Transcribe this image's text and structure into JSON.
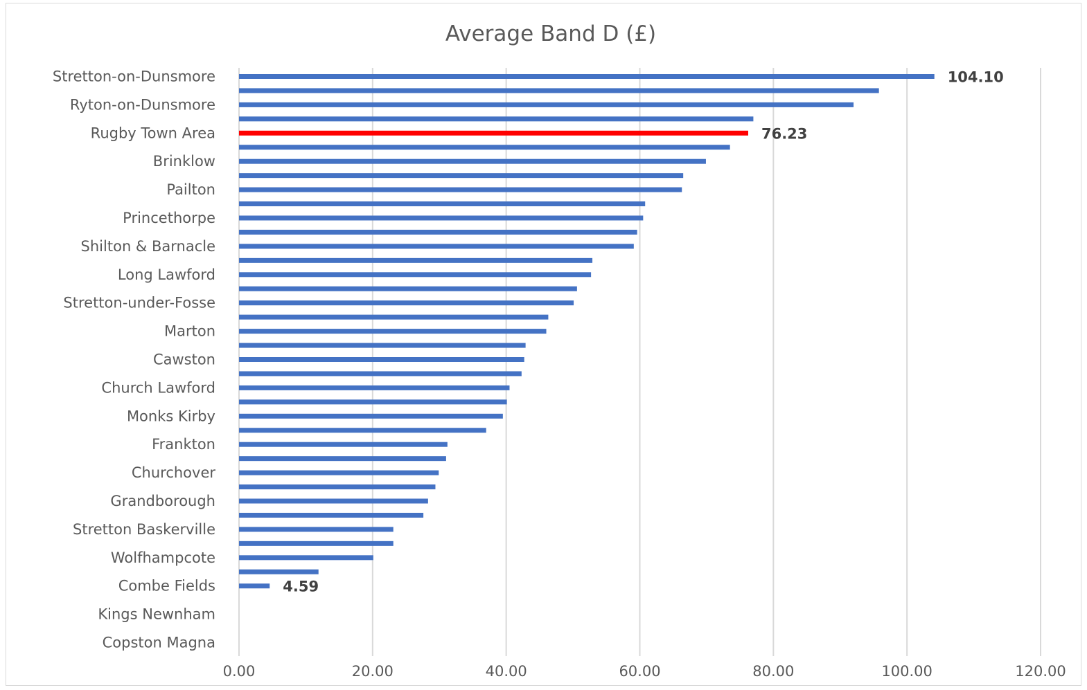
{
  "chart_data": {
    "type": "bar",
    "orientation": "horizontal",
    "title": "Average Band D (£)",
    "xlabel": "",
    "ylabel": "",
    "xlim": [
      0,
      120
    ],
    "xticks": [
      "0.00",
      "20.00",
      "40.00",
      "60.00",
      "80.00",
      "100.00",
      "120.00"
    ],
    "grid": true,
    "legend": "none",
    "categories": [
      "Stretton-on-Dunsmore",
      "",
      "Ryton-on-Dunsmore",
      "",
      "Rugby Town Area",
      "",
      "Brinklow",
      "",
      "Pailton",
      "",
      "Princethorpe",
      "",
      "Shilton & Barnacle",
      "",
      "Long Lawford",
      "",
      "Stretton-under-Fosse",
      "",
      "Marton",
      "",
      "Cawston",
      "",
      "Church Lawford",
      "",
      "Monks Kirby",
      "",
      "Frankton",
      "",
      "Churchover",
      "",
      "Grandborough",
      "",
      "Stretton Baskerville",
      "",
      "Wolfhampcote",
      "",
      "Combe Fields",
      "",
      "Kings Newnham",
      "",
      "Copston Magna"
    ],
    "values": [
      104.1,
      95.8,
      92.0,
      77.0,
      76.23,
      73.5,
      69.9,
      66.5,
      66.3,
      60.8,
      60.5,
      59.6,
      59.1,
      52.9,
      52.7,
      50.6,
      50.1,
      46.3,
      46.0,
      42.9,
      42.7,
      42.3,
      40.5,
      40.1,
      39.5,
      37.0,
      31.2,
      31.0,
      29.9,
      29.4,
      28.3,
      27.6,
      23.1,
      23.1,
      20.1,
      11.9,
      4.59,
      0,
      0,
      0,
      0
    ],
    "highlight": {
      "category": "Rugby Town Area",
      "color": "#ff0000"
    },
    "bar_color": "#4472c4",
    "data_labels": [
      {
        "category": "Stretton-on-Dunsmore",
        "text": "104.10"
      },
      {
        "category": "Rugby Town Area",
        "text": "76.23"
      },
      {
        "category": "Combe Fields",
        "text": "4.59"
      }
    ]
  }
}
